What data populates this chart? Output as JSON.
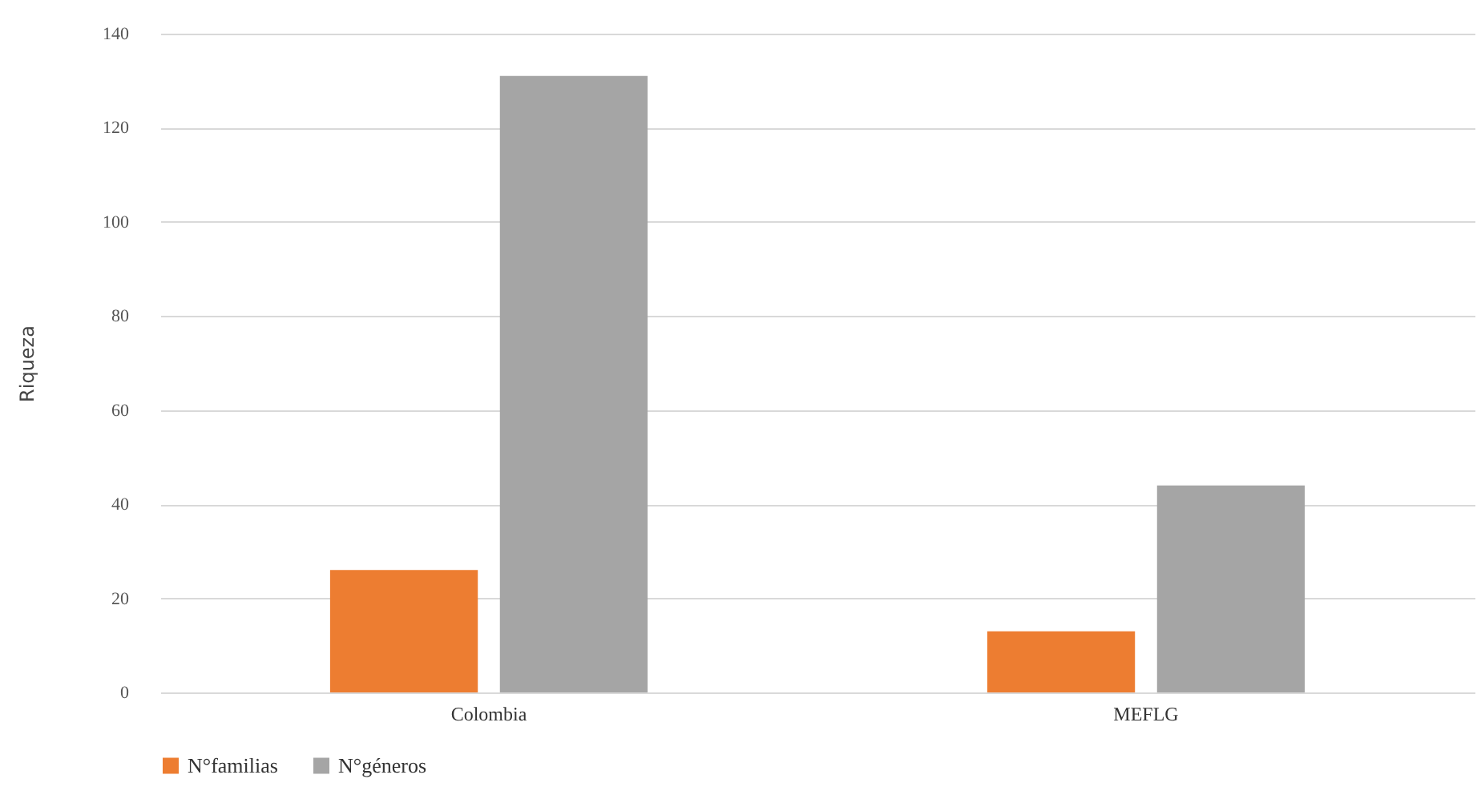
{
  "chart_data": {
    "type": "bar",
    "ylabel": "Riqueza",
    "categories": [
      "Colombia",
      "MEFLG"
    ],
    "series": [
      {
        "name": "N°familias",
        "color": "#ed7d31",
        "values": [
          26,
          13
        ]
      },
      {
        "name": "N°géneros",
        "color": "#a5a5a5",
        "values": [
          131,
          44
        ]
      }
    ],
    "ylim": [
      0,
      140
    ],
    "yticks": [
      0,
      20,
      40,
      60,
      80,
      100,
      120,
      140
    ],
    "grid": "y",
    "legend": "bottom"
  }
}
